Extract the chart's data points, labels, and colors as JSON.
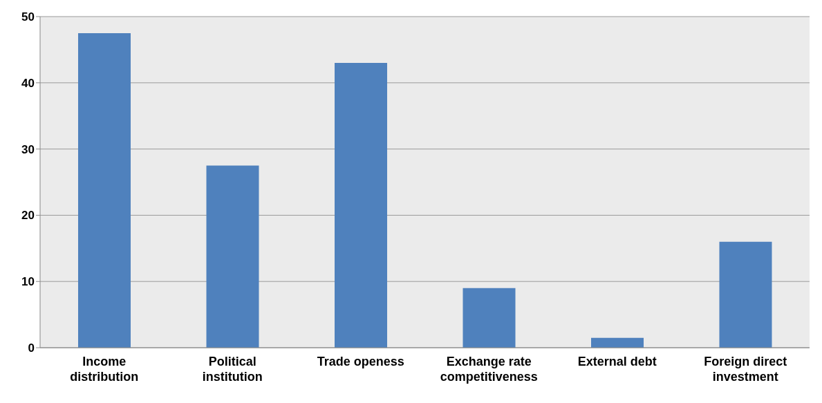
{
  "chart_data": {
    "type": "bar",
    "categories": [
      "Income distribution",
      "Political institution",
      "Trade openess",
      "Exchange rate competitiveness",
      "External debt",
      "Foreign direct investment"
    ],
    "values": [
      47.5,
      27.5,
      43,
      9,
      1.5,
      16
    ],
    "color": "#4f81bd",
    "ylim": [
      0,
      50
    ],
    "yticks": [
      0,
      10,
      20,
      30,
      40,
      50
    ],
    "grid": "y"
  }
}
